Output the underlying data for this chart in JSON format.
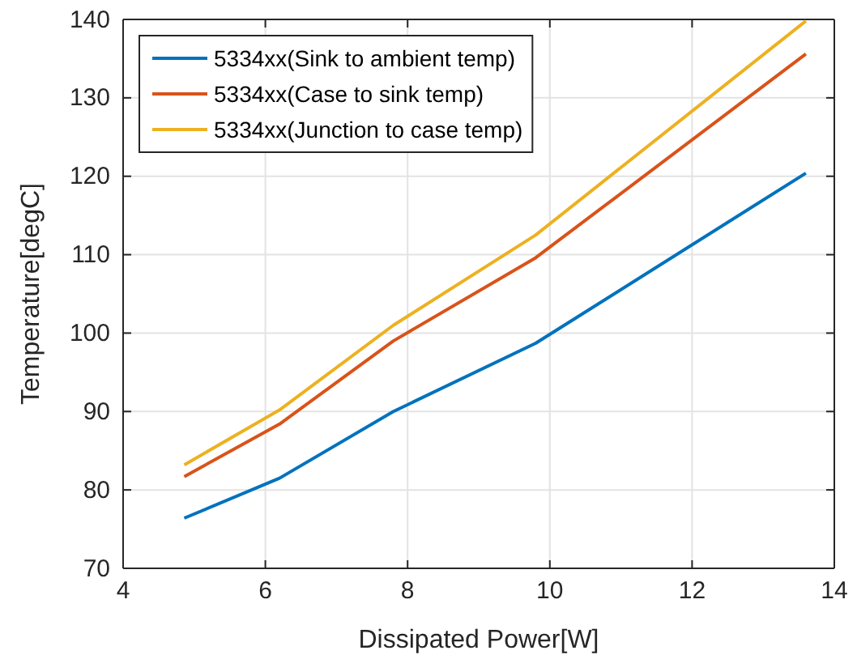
{
  "chart_data": {
    "type": "line",
    "xlabel": "Dissipated Power[W]",
    "ylabel": "Temperature[degC]",
    "x": [
      4.86,
      6.2,
      7.8,
      9.8,
      13.6
    ],
    "xlim": [
      4,
      14
    ],
    "xticks": [
      4,
      6,
      8,
      10,
      12,
      14
    ],
    "ylim": [
      70,
      140
    ],
    "yticks": [
      70,
      80,
      90,
      100,
      110,
      120,
      130,
      140
    ],
    "grid": true,
    "legend": "top left",
    "marker": "none",
    "line_style": "solid",
    "series": [
      {
        "name": "5334xx(Sink to ambient temp)",
        "color": "#0072bd",
        "values": [
          76.4,
          81.5,
          90,
          98.7,
          120.4
        ]
      },
      {
        "name": "5334xx(Case to sink temp)",
        "color": "#d95319",
        "values": [
          81.7,
          88.4,
          99,
          109.6,
          135.6
        ]
      },
      {
        "name": "5334xx(Junction to case temp)",
        "color": "#edb120",
        "values": [
          83.2,
          90.2,
          101,
          112.5,
          139.8
        ]
      }
    ]
  }
}
